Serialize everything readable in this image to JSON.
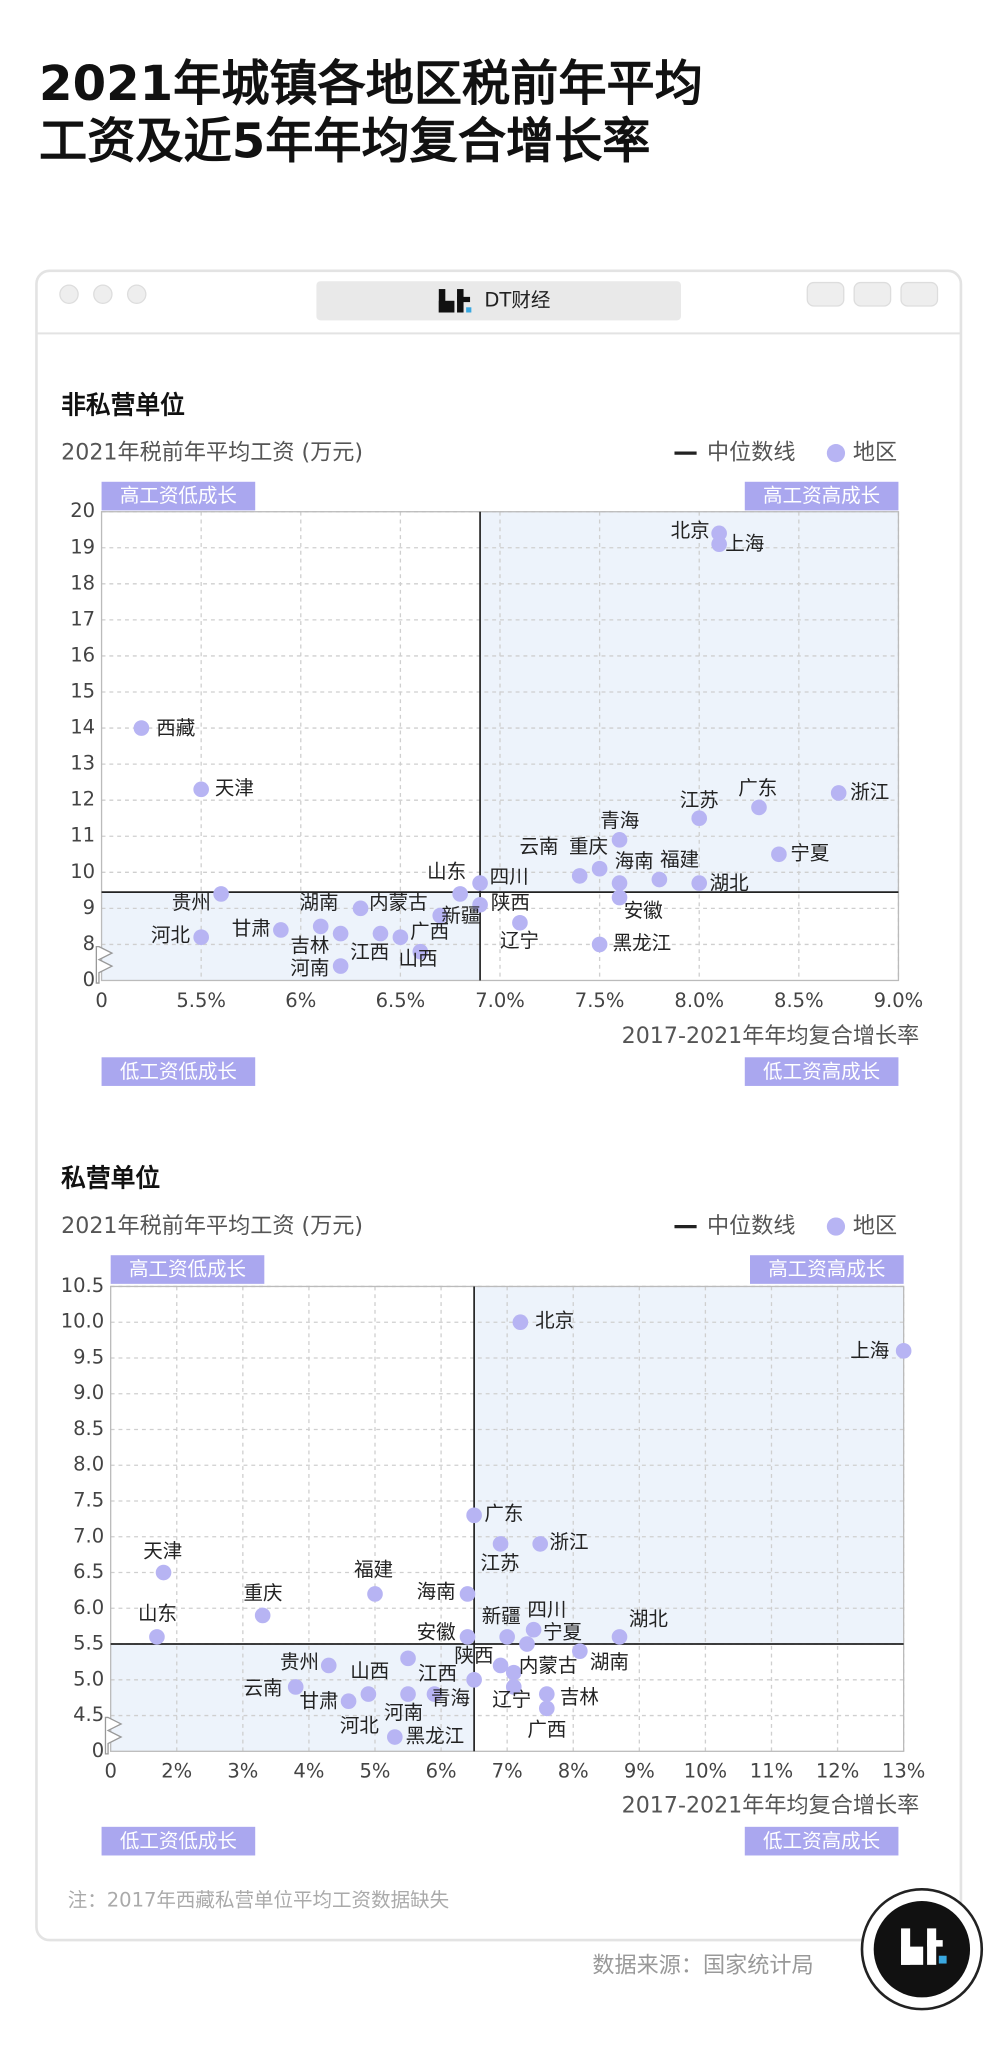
{
  "title_lines": [
    "2021年城镇各地区税前年平均",
    "工资及近5年年均复合增长率"
  ],
  "window_title": "DT财经",
  "note": "注：2017年西藏私营单位平均工资数据缺失",
  "source": "数据来源：国家统计局",
  "chart_data": [
    {
      "type": "scatter",
      "title": "非私营单位",
      "ylabel": "2021年税前年平均工资 (万元)",
      "xlabel": "2017-2021年年均复合增长率",
      "axis_break_labels": {
        "x": "0",
        "y": "0"
      },
      "xlim": [
        5,
        9
      ],
      "xticks": [
        {
          "value": 5.5,
          "label": "5.5%"
        },
        {
          "value": 6,
          "label": "6%"
        },
        {
          "value": 6.5,
          "label": "6.5%"
        },
        {
          "value": 7,
          "label": "7.0%"
        },
        {
          "value": 7.5,
          "label": "7.5%"
        },
        {
          "value": 8,
          "label": "8.0%"
        },
        {
          "value": 8.5,
          "label": "8.5%"
        },
        {
          "value": 9,
          "label": "9.0%"
        }
      ],
      "ylim": [
        7,
        20
      ],
      "yticks": [
        8,
        9,
        10,
        11,
        12,
        13,
        14,
        15,
        16,
        17,
        18,
        19,
        20
      ],
      "grid": true,
      "median": {
        "label": "中位数线",
        "color": "#222222",
        "x": 6.9,
        "y": 9.45
      },
      "quadrant_labels": {
        "top_left": "高工资低成长",
        "top_right": "高工资高成长",
        "bottom_left": "低工资低成长",
        "bottom_right": "低工资高成长"
      },
      "quadrant_color": "#aaa7ef",
      "shade_color": "#edf3fb",
      "series": [
        {
          "name": "地区",
          "color": "#b7b4f3",
          "labels": [
            "北京",
            "上海",
            "西藏",
            "天津",
            "浙江",
            "广东",
            "江苏",
            "青海",
            "宁夏",
            "重庆",
            "云南",
            "海南",
            "福建",
            "湖北",
            "安徽",
            "四川",
            "山东",
            "陕西",
            "新疆",
            "辽宁",
            "黑龙江",
            "贵州",
            "河北",
            "甘肃",
            "湖南",
            "内蒙古",
            "吉林",
            "河南",
            "江西",
            "广西",
            "山西"
          ],
          "x": [
            8.1,
            8.1,
            5.2,
            5.5,
            8.7,
            8.3,
            8.0,
            7.6,
            8.4,
            7.5,
            7.4,
            7.6,
            7.8,
            8.0,
            7.6,
            6.9,
            6.8,
            6.9,
            6.7,
            7.1,
            7.5,
            5.6,
            5.5,
            5.9,
            6.1,
            6.3,
            6.2,
            6.2,
            6.4,
            6.5,
            6.6
          ],
          "values": [
            19.4,
            19.1,
            14.0,
            12.3,
            12.2,
            11.8,
            11.5,
            10.9,
            10.5,
            10.1,
            9.9,
            9.7,
            9.8,
            9.7,
            9.3,
            9.7,
            9.4,
            9.1,
            8.8,
            8.6,
            8.0,
            9.4,
            8.2,
            8.4,
            8.5,
            9.0,
            8.3,
            7.4,
            8.3,
            8.2,
            7.8
          ]
        }
      ]
    },
    {
      "type": "scatter",
      "title": "私营单位",
      "ylabel": "2021年税前年平均工资 (万元)",
      "xlabel": "2017-2021年年均复合增长率",
      "axis_break_labels": {
        "x": "0",
        "y": "0"
      },
      "xlim": [
        1,
        13
      ],
      "xticks": [
        {
          "value": 2,
          "label": "2%"
        },
        {
          "value": 3,
          "label": "3%"
        },
        {
          "value": 4,
          "label": "4%"
        },
        {
          "value": 5,
          "label": "5%"
        },
        {
          "value": 6,
          "label": "6%"
        },
        {
          "value": 7,
          "label": "7%"
        },
        {
          "value": 8,
          "label": "8%"
        },
        {
          "value": 9,
          "label": "9%"
        },
        {
          "value": 10,
          "label": "10%"
        },
        {
          "value": 11,
          "label": "11%"
        },
        {
          "value": 12,
          "label": "12%"
        },
        {
          "value": 13,
          "label": "13%"
        }
      ],
      "ylim": [
        4,
        10.5
      ],
      "yticks": [
        4.5,
        {
          "value": 5,
          "label": "5.0"
        },
        5.5,
        {
          "value": 6,
          "label": "6.0"
        },
        6.5,
        {
          "value": 7,
          "label": "7.0"
        },
        7.5,
        {
          "value": 8,
          "label": "8.0"
        },
        8.5,
        {
          "value": 9,
          "label": "9.0"
        },
        9.5,
        {
          "value": 10,
          "label": "10.0"
        },
        10.5
      ],
      "grid": true,
      "median": {
        "label": "中位数线",
        "color": "#222222",
        "x": 6.5,
        "y": 5.5
      },
      "quadrant_labels": {
        "top_left": "高工资低成长",
        "top_right": "高工资高成长",
        "bottom_left": "低工资低成长",
        "bottom_right": "低工资高成长"
      },
      "quadrant_color": "#aaa7ef",
      "shade_color": "#edf3fb",
      "series": [
        {
          "name": "地区",
          "color": "#b7b4f3",
          "labels": [
            "北京",
            "上海",
            "广东",
            "浙江",
            "江苏",
            "天津",
            "福建",
            "海南",
            "重庆",
            "山东",
            "湖北",
            "四川",
            "新疆",
            "安徽",
            "宁夏",
            "湖南",
            "陕西",
            "内蒙古",
            "贵州",
            "山西",
            "江西",
            "云南",
            "甘肃",
            "河北",
            "河南",
            "青海",
            "辽宁",
            "吉林",
            "广西",
            "黑龙江"
          ],
          "x": [
            7.2,
            13.0,
            6.5,
            7.5,
            6.9,
            1.8,
            5.0,
            6.4,
            3.3,
            1.7,
            8.7,
            7.4,
            7.0,
            6.4,
            7.3,
            8.1,
            6.9,
            7.1,
            4.3,
            5.5,
            6.5,
            3.8,
            4.6,
            4.9,
            5.5,
            5.9,
            7.1,
            7.6,
            7.6,
            5.3
          ],
          "values": [
            10.0,
            9.6,
            7.3,
            6.9,
            6.9,
            6.5,
            6.2,
            6.2,
            5.9,
            5.6,
            5.6,
            5.7,
            5.6,
            5.6,
            5.5,
            5.4,
            5.2,
            5.1,
            5.2,
            5.3,
            5.0,
            4.9,
            4.7,
            4.8,
            4.8,
            4.8,
            4.9,
            4.8,
            4.6,
            4.2
          ]
        }
      ]
    }
  ]
}
